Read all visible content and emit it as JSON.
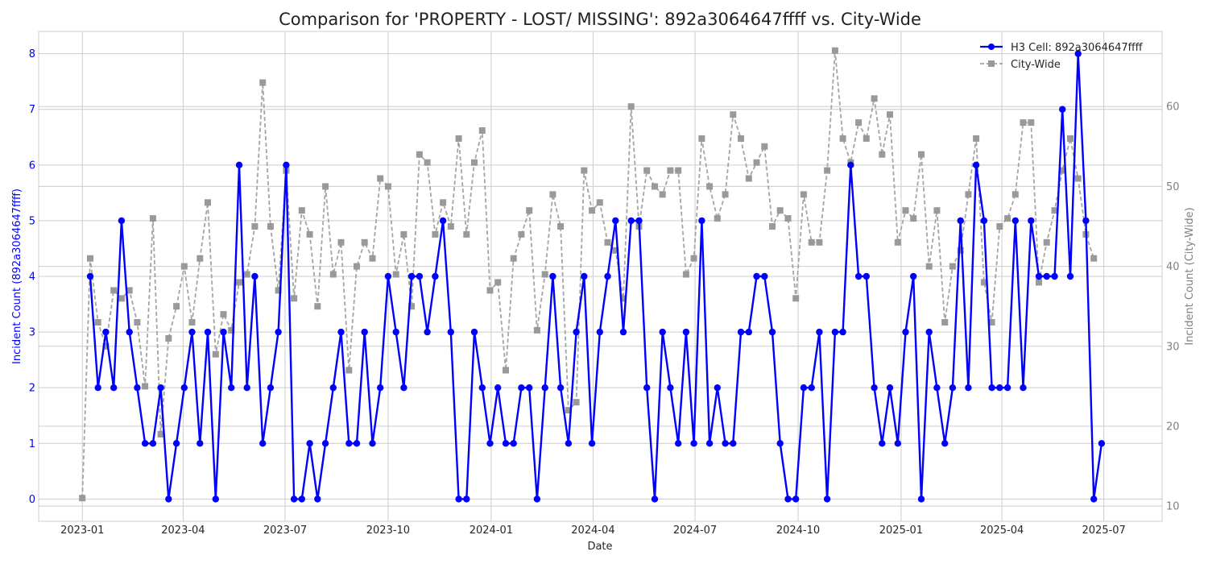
{
  "chart_data": {
    "type": "line",
    "title": "Comparison for 'PROPERTY - LOST/ MISSING': 892a3064647ffff vs. City-Wide",
    "xlabel": "Date",
    "ylabel_left": "Incident Count (892a3064647ffff)",
    "ylabel_right": "Incident Count (City-Wide)",
    "x_range": [
      "2022-11-23",
      "2025-08-22"
    ],
    "x_ticks": [
      "2023-01",
      "2023-04",
      "2023-07",
      "2023-10",
      "2024-01",
      "2024-04",
      "2024-07",
      "2024-10",
      "2025-01",
      "2025-04",
      "2025-07"
    ],
    "x_tick_dates": [
      "2023-01-01",
      "2023-04-01",
      "2023-07-01",
      "2023-10-01",
      "2024-01-01",
      "2024-04-01",
      "2024-07-01",
      "2024-10-01",
      "2025-01-01",
      "2025-04-01",
      "2025-07-01"
    ],
    "ylim_left": [
      -0.4,
      8.4
    ],
    "yticks_left": [
      0,
      1,
      2,
      3,
      4,
      5,
      6,
      7,
      8
    ],
    "ylim_right": [
      8.1,
      69.4
    ],
    "yticks_right": [
      10,
      20,
      30,
      40,
      50,
      60
    ],
    "grid": true,
    "legend_position": "top-right",
    "x_dates": [
      "2023-01-01",
      "2023-01-08",
      "2023-01-15",
      "2023-01-22",
      "2023-01-29",
      "2023-02-05",
      "2023-02-12",
      "2023-02-19",
      "2023-02-26",
      "2023-03-05",
      "2023-03-12",
      "2023-03-19",
      "2023-03-26",
      "2023-04-02",
      "2023-04-09",
      "2023-04-16",
      "2023-04-23",
      "2023-04-30",
      "2023-05-07",
      "2023-05-14",
      "2023-05-21",
      "2023-05-28",
      "2023-06-04",
      "2023-06-11",
      "2023-06-18",
      "2023-06-25",
      "2023-07-02",
      "2023-07-09",
      "2023-07-16",
      "2023-07-23",
      "2023-07-30",
      "2023-08-06",
      "2023-08-13",
      "2023-08-20",
      "2023-08-27",
      "2023-09-03",
      "2023-09-10",
      "2023-09-17",
      "2023-09-24",
      "2023-10-01",
      "2023-10-08",
      "2023-10-15",
      "2023-10-22",
      "2023-10-29",
      "2023-11-05",
      "2023-11-12",
      "2023-11-19",
      "2023-11-26",
      "2023-12-03",
      "2023-12-10",
      "2023-12-17",
      "2023-12-24",
      "2023-12-31",
      "2024-01-07",
      "2024-01-14",
      "2024-01-21",
      "2024-01-28",
      "2024-02-04",
      "2024-02-11",
      "2024-02-18",
      "2024-02-25",
      "2024-03-03",
      "2024-03-10",
      "2024-03-17",
      "2024-03-24",
      "2024-03-31",
      "2024-04-07",
      "2024-04-14",
      "2024-04-21",
      "2024-04-28",
      "2024-05-05",
      "2024-05-12",
      "2024-05-19",
      "2024-05-26",
      "2024-06-02",
      "2024-06-09",
      "2024-06-16",
      "2024-06-23",
      "2024-06-30",
      "2024-07-07",
      "2024-07-14",
      "2024-07-21",
      "2024-07-28",
      "2024-08-04",
      "2024-08-11",
      "2024-08-18",
      "2024-08-25",
      "2024-09-01",
      "2024-09-08",
      "2024-09-15",
      "2024-09-22",
      "2024-09-29",
      "2024-10-06",
      "2024-10-13",
      "2024-10-20",
      "2024-10-27",
      "2024-11-03",
      "2024-11-10",
      "2024-11-17",
      "2024-11-24",
      "2024-12-01",
      "2024-12-08",
      "2024-12-15",
      "2024-12-22",
      "2024-12-29",
      "2025-01-05",
      "2025-01-12",
      "2025-01-19",
      "2025-01-26",
      "2025-02-02",
      "2025-02-09",
      "2025-02-16",
      "2025-02-23",
      "2025-03-02",
      "2025-03-09",
      "2025-03-16",
      "2025-03-23",
      "2025-03-30",
      "2025-04-06",
      "2025-04-13",
      "2025-04-20",
      "2025-04-27",
      "2025-05-04",
      "2025-05-11",
      "2025-05-18",
      "2025-05-25",
      "2025-06-01",
      "2025-06-08",
      "2025-06-15",
      "2025-06-22",
      "2025-06-29"
    ],
    "series": [
      {
        "name": "H3 Cell: 892a3064647ffff",
        "axis": "left",
        "color": "#0000ff",
        "marker": "circle",
        "line_style": "solid",
        "start_index": 1,
        "values": [
          4,
          2,
          3,
          2,
          5,
          3,
          2,
          1,
          1,
          2,
          0,
          1,
          2,
          3,
          1,
          3,
          0,
          3,
          2,
          6,
          2,
          4,
          1,
          2,
          3,
          6,
          0,
          0,
          1,
          0,
          1,
          2,
          3,
          1,
          1,
          3,
          1,
          2,
          4,
          3,
          2,
          4,
          4,
          3,
          4,
          5,
          3,
          0,
          0,
          3,
          2,
          1,
          2,
          1,
          1,
          2,
          2,
          0,
          2,
          4,
          2,
          1,
          3,
          4,
          1,
          3,
          4,
          5,
          3,
          5,
          5,
          2,
          0,
          3,
          2,
          1,
          3,
          1,
          5,
          1,
          2,
          1,
          1,
          3,
          3,
          4,
          4,
          3,
          1,
          0,
          0,
          2,
          2,
          3,
          0,
          3,
          3,
          6,
          4,
          4,
          2,
          1,
          2,
          1,
          3,
          4,
          0,
          3,
          2,
          1,
          2,
          5,
          2,
          6,
          5,
          2,
          2,
          2,
          5,
          2,
          5,
          4,
          4,
          4,
          7,
          4,
          8,
          5,
          0,
          1
        ]
      },
      {
        "name": "City-Wide",
        "axis": "right",
        "color": "#a0a0a0",
        "marker": "square",
        "line_style": "dashed",
        "start_index": 0,
        "values": [
          11,
          41,
          33,
          30,
          37,
          36,
          37,
          33,
          25,
          46,
          19,
          31,
          35,
          40,
          33,
          41,
          48,
          29,
          34,
          32,
          38,
          39,
          45,
          63,
          45,
          37,
          52,
          36,
          47,
          44,
          35,
          50,
          39,
          43,
          27,
          40,
          43,
          41,
          51,
          50,
          39,
          44,
          35,
          54,
          53,
          44,
          48,
          45,
          56,
          44,
          53,
          57,
          37,
          38,
          27,
          41,
          44,
          47,
          32,
          39,
          49,
          45,
          22,
          23,
          52,
          47,
          48,
          43,
          42,
          36,
          60,
          45,
          52,
          50,
          49,
          52,
          52,
          39,
          41,
          56,
          50,
          46,
          49,
          59,
          56,
          51,
          53,
          55,
          45,
          47,
          46,
          36,
          49,
          43,
          43,
          52,
          67,
          56,
          53,
          58,
          56,
          61,
          54,
          59,
          43,
          47,
          46,
          54,
          40,
          47,
          33,
          40,
          42,
          49,
          56,
          38,
          33,
          45,
          46,
          49,
          58,
          58,
          38,
          43,
          47,
          52,
          56,
          51,
          44,
          41
        ]
      }
    ]
  }
}
